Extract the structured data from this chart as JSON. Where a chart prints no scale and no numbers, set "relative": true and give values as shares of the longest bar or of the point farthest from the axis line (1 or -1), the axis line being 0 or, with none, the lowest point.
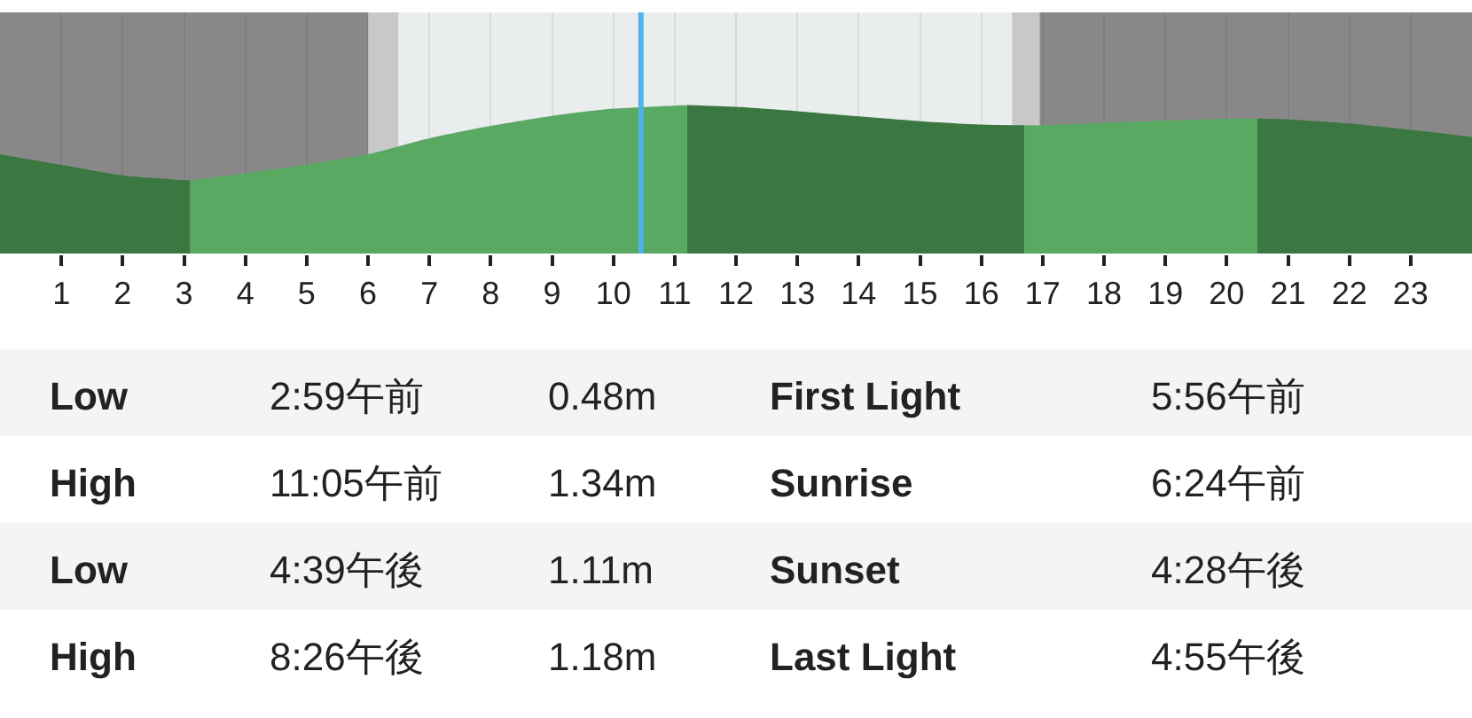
{
  "chart_data": {
    "type": "area",
    "relative": true,
    "series": [
      {
        "color": "#3b7741",
        "x": [
          0,
          1,
          2,
          3.1
        ],
        "values": [
          0.669,
          0.597,
          0.526,
          0.493
        ]
      },
      {
        "color": "#59a962",
        "x": [
          3.1,
          4,
          5,
          6,
          7,
          8,
          9,
          10,
          11,
          11.2
        ],
        "values": [
          0.493,
          0.541,
          0.601,
          0.669,
          0.777,
          0.86,
          0.928,
          0.976,
          0.996,
          1.0
        ]
      },
      {
        "color": "#3b7741",
        "x": [
          11.2,
          12,
          13,
          14,
          15,
          16,
          16.7
        ],
        "values": [
          1.0,
          0.988,
          0.959,
          0.924,
          0.892,
          0.869,
          0.864
        ]
      },
      {
        "color": "#59a962",
        "x": [
          16.7,
          17,
          18,
          19,
          20,
          20.5
        ],
        "values": [
          0.864,
          0.864,
          0.881,
          0.896,
          0.908,
          0.909
        ]
      },
      {
        "color": "#3b7741",
        "x": [
          20.5,
          21,
          22,
          23,
          24
        ],
        "values": [
          0.909,
          0.904,
          0.876,
          0.833,
          0.785
        ]
      }
    ],
    "xlim": [
      0,
      24
    ],
    "xticks": [
      1,
      2,
      3,
      4,
      5,
      6,
      7,
      8,
      9,
      10,
      11,
      12,
      13,
      14,
      15,
      16,
      17,
      18,
      19,
      20,
      21,
      22,
      23
    ],
    "grid": "x",
    "bands": [
      {
        "axis": "x",
        "from": 0,
        "to": 6.0,
        "color": "#888888"
      },
      {
        "axis": "x",
        "from": 6.0,
        "to": 6.5,
        "color": "#c8c8c8"
      },
      {
        "axis": "x",
        "from": 6.5,
        "to": 16.5,
        "color": "#e9edee"
      },
      {
        "axis": "x",
        "from": 16.5,
        "to": 16.95,
        "color": "#c8c8c8"
      },
      {
        "axis": "x",
        "from": 16.95,
        "to": 24,
        "color": "#888888"
      }
    ],
    "ref_lines": [
      {
        "axis": "x",
        "value": 10.45,
        "color": "#4db3e8"
      }
    ],
    "annotations": [
      "Low",
      "2:59午前",
      "0.48m",
      "First Light",
      "5:56午前",
      "High",
      "11:05午前",
      "1.34m",
      "Sunrise",
      "6:24午前",
      "Low",
      "4:39午後",
      "1.11m",
      "Sunset",
      "4:28午後",
      "High",
      "8:26午後",
      "1.18m",
      "Last Light",
      "4:55午後"
    ]
  }
}
